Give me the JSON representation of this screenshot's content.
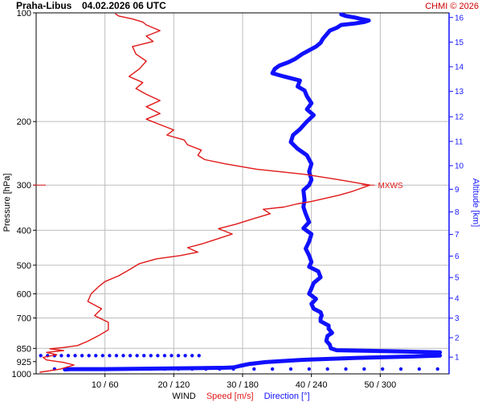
{
  "header": {
    "station": "Praha-Libus",
    "datetime": "04.02.2026 06 UTC",
    "credit": "CHMI © 2026"
  },
  "colors": {
    "speed": "#e01818",
    "direction": "#1010ff",
    "grid": "#bdbdbd",
    "frame": "#000000"
  },
  "chart_data": {
    "type": "line",
    "title": "Praha-Libus   04.02.2026 06 UTC",
    "xlabel_prefix": "WIND",
    "xlabel_speed": "Speed [m/s]",
    "xlabel_direction": "Direction [°]",
    "ylabel_left": "Pressure [hPa]",
    "ylabel_right": "Altitude [km]",
    "y_scale": "log",
    "ylim": [
      1000,
      100
    ],
    "x_speed_range": [
      0,
      60
    ],
    "x_direction_range": [
      0,
      360
    ],
    "x_ticks": [
      "10 / 60",
      "20 / 120",
      "30 / 180",
      "40 / 240",
      "50 / 300"
    ],
    "pressure_ticks": [
      100,
      200,
      300,
      400,
      500,
      600,
      700,
      850,
      925,
      1000
    ],
    "pressure_gridlines": [
      100,
      200,
      300,
      400,
      500,
      600,
      700,
      850
    ],
    "altitude_ticks": [
      1,
      2,
      3,
      4,
      5,
      6,
      7,
      8,
      9,
      10,
      11,
      12,
      13,
      14,
      15,
      16
    ],
    "annotation": {
      "text": "MXWS",
      "pressure": 300,
      "speed": 48.5
    },
    "speed_series": {
      "name": "Speed [m/s]",
      "points": [
        [
          0.5,
          990
        ],
        [
          3.5,
          970
        ],
        [
          5.5,
          945
        ],
        [
          4,
          930
        ],
        [
          1.5,
          915
        ],
        [
          1,
          900
        ],
        [
          3,
          885
        ],
        [
          1.5,
          872
        ],
        [
          4,
          862
        ],
        [
          2,
          852
        ],
        [
          4,
          845
        ],
        [
          6,
          835
        ],
        [
          7.5,
          812
        ],
        [
          9,
          785
        ],
        [
          10.5,
          755
        ],
        [
          10.5,
          720
        ],
        [
          8.5,
          690
        ],
        [
          9.5,
          660
        ],
        [
          7.5,
          630
        ],
        [
          8,
          600
        ],
        [
          9,
          575
        ],
        [
          10,
          555
        ],
        [
          12,
          535
        ],
        [
          13.5,
          515
        ],
        [
          15,
          495
        ],
        [
          17.5,
          480
        ],
        [
          21,
          470
        ],
        [
          23.5,
          460
        ],
        [
          22,
          447
        ],
        [
          24,
          437
        ],
        [
          26,
          425
        ],
        [
          28.5,
          410
        ],
        [
          26.5,
          396
        ],
        [
          29,
          385
        ],
        [
          31.5,
          372
        ],
        [
          34,
          360
        ],
        [
          33,
          350
        ],
        [
          36,
          345
        ],
        [
          38,
          338
        ],
        [
          40,
          333
        ],
        [
          44,
          320
        ],
        [
          46,
          312
        ],
        [
          48.5,
          300
        ],
        [
          44,
          290
        ],
        [
          39,
          280
        ],
        [
          32,
          271
        ],
        [
          27.5,
          262
        ],
        [
          24.5,
          255
        ],
        [
          23.5,
          248
        ],
        [
          24,
          240
        ],
        [
          22,
          232
        ],
        [
          21.5,
          225
        ],
        [
          19,
          218
        ],
        [
          20,
          211
        ],
        [
          18,
          204
        ],
        [
          16,
          197
        ],
        [
          18,
          190
        ],
        [
          16,
          182
        ],
        [
          18,
          175
        ],
        [
          16,
          168
        ],
        [
          14.5,
          162
        ],
        [
          15.5,
          156
        ],
        [
          13.5,
          150
        ],
        [
          15,
          143
        ],
        [
          16,
          136
        ],
        [
          14.5,
          130
        ],
        [
          14,
          124
        ],
        [
          17,
          120
        ],
        [
          16,
          116
        ],
        [
          18,
          112
        ],
        [
          16,
          108
        ],
        [
          15.5,
          106
        ],
        [
          14,
          104
        ],
        [
          12,
          102
        ],
        [
          11.5,
          100.5
        ]
      ]
    },
    "direction_series": {
      "name": "Direction [°]",
      "points": [
        [
          25,
          972
        ],
        [
          30,
          970
        ],
        [
          60,
          970
        ],
        [
          100,
          967
        ],
        [
          140,
          964
        ],
        [
          165,
          962
        ],
        [
          172,
          960
        ],
        [
          178,
          950
        ],
        [
          185,
          940
        ],
        [
          200,
          928
        ],
        [
          230,
          915
        ],
        [
          280,
          903
        ],
        [
          328,
          895
        ],
        [
          352,
          890
        ],
        [
          345,
          880
        ],
        [
          352,
          872
        ],
        [
          310,
          866
        ],
        [
          262,
          860
        ],
        [
          257,
          850
        ],
        [
          256,
          830
        ],
        [
          253,
          810
        ],
        [
          254,
          785
        ],
        [
          258,
          770
        ],
        [
          255,
          750
        ],
        [
          255,
          735
        ],
        [
          248,
          715
        ],
        [
          248,
          700
        ],
        [
          249,
          690
        ],
        [
          248,
          675
        ],
        [
          242,
          660
        ],
        [
          240,
          640
        ],
        [
          244,
          620
        ],
        [
          238,
          600
        ],
        [
          240,
          580
        ],
        [
          242,
          560
        ],
        [
          248,
          540
        ],
        [
          246,
          520
        ],
        [
          238,
          505
        ],
        [
          240,
          490
        ],
        [
          238,
          470
        ],
        [
          235,
          450
        ],
        [
          238,
          430
        ],
        [
          240,
          410
        ],
        [
          233,
          395
        ],
        [
          238,
          380
        ],
        [
          235,
          360
        ],
        [
          233,
          345
        ],
        [
          234,
          330
        ],
        [
          233,
          310
        ],
        [
          238,
          300
        ],
        [
          240,
          290
        ],
        [
          238,
          275
        ],
        [
          240,
          262
        ],
        [
          236,
          248
        ],
        [
          228,
          238
        ],
        [
          222,
          228
        ],
        [
          224,
          218
        ],
        [
          230,
          210
        ],
        [
          236,
          200
        ],
        [
          242,
          192
        ],
        [
          236,
          185
        ],
        [
          240,
          178
        ],
        [
          236,
          170
        ],
        [
          234,
          164
        ],
        [
          228,
          160
        ],
        [
          230,
          154
        ],
        [
          216,
          150
        ],
        [
          206,
          147
        ],
        [
          208,
          143
        ],
        [
          212,
          140
        ],
        [
          220,
          137
        ],
        [
          226,
          134
        ],
        [
          232,
          130
        ],
        [
          238,
          127
        ],
        [
          244,
          124
        ],
        [
          248,
          121
        ],
        [
          250,
          118
        ],
        [
          253,
          115
        ],
        [
          256,
          112
        ],
        [
          262,
          110
        ],
        [
          266,
          108
        ],
        [
          278,
          107
        ],
        [
          286,
          106
        ],
        [
          290,
          105
        ],
        [
          283,
          104
        ],
        [
          278,
          103
        ],
        [
          270,
          102
        ],
        [
          266,
          101
        ]
      ]
    },
    "ground_direction_dots": [
      [
        16,
        1000
      ],
      [
        28,
        1000
      ],
      [
        40,
        1000
      ],
      [
        52,
        1000
      ],
      [
        64,
        1000
      ],
      [
        76,
        1000
      ],
      [
        88,
        1000
      ],
      [
        100,
        1000
      ],
      [
        112,
        1000
      ],
      [
        124,
        1000
      ],
      [
        136,
        1000
      ],
      [
        148,
        1000
      ],
      [
        160,
        1000
      ],
      [
        172,
        1000
      ],
      [
        190,
        1000
      ],
      [
        206,
        1000
      ],
      [
        222,
        1000
      ],
      [
        238,
        1000
      ],
      [
        254,
        1000
      ],
      [
        270,
        1000
      ],
      [
        286,
        1000
      ],
      [
        302,
        1000
      ],
      [
        318,
        1000
      ],
      [
        334,
        1000
      ],
      [
        350,
        1000
      ]
    ],
    "low_direction_dots": [
      [
        4,
        890
      ],
      [
        10,
        890
      ],
      [
        16,
        890
      ],
      [
        22,
        890
      ],
      [
        28,
        890
      ],
      [
        34,
        890
      ],
      [
        40,
        890
      ],
      [
        46,
        890
      ],
      [
        52,
        890
      ],
      [
        58,
        890
      ],
      [
        64,
        890
      ],
      [
        70,
        890
      ],
      [
        76,
        890
      ],
      [
        82,
        890
      ],
      [
        88,
        890
      ],
      [
        94,
        890
      ],
      [
        100,
        890
      ],
      [
        106,
        890
      ],
      [
        112,
        890
      ],
      [
        118,
        890
      ],
      [
        124,
        890
      ],
      [
        130,
        890
      ],
      [
        136,
        890
      ],
      [
        142,
        890
      ]
    ]
  }
}
